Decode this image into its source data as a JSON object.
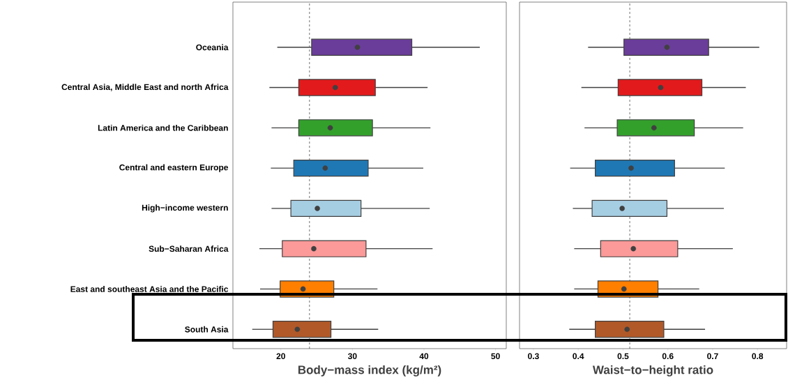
{
  "chart_data": [
    {
      "type": "box",
      "orientation": "horizontal",
      "xlabel": "Body−mass index (kg/m²)",
      "categories": [
        "Oceania",
        "Central Asia, Middle East and north Africa",
        "Latin America and the Caribbean",
        "Central and eastern Europe",
        "High−income western",
        "Sub−Saharan Africa",
        "East and southeast Asia and the Pacific",
        "South Asia"
      ],
      "colors": [
        "#6a3d9a",
        "#e31a1c",
        "#33a02c",
        "#1f78b4",
        "#a6cee3",
        "#fb9a99",
        "#ff7f00",
        "#b15928"
      ],
      "boxes": [
        {
          "low": 19.5,
          "q1": 24.3,
          "median": 30.7,
          "q3": 38.3,
          "high": 47.8
        },
        {
          "low": 18.4,
          "q1": 22.5,
          "median": 27.6,
          "q3": 33.2,
          "high": 40.5
        },
        {
          "low": 18.7,
          "q1": 22.5,
          "median": 26.9,
          "q3": 32.8,
          "high": 40.9
        },
        {
          "low": 18.6,
          "q1": 21.8,
          "median": 26.2,
          "q3": 32.2,
          "high": 39.9
        },
        {
          "low": 18.7,
          "q1": 21.4,
          "median": 25.1,
          "q3": 31.2,
          "high": 40.8
        },
        {
          "low": 17.0,
          "q1": 20.2,
          "median": 24.6,
          "q3": 31.9,
          "high": 41.2
        },
        {
          "low": 17.1,
          "q1": 19.9,
          "median": 23.1,
          "q3": 27.4,
          "high": 33.5
        },
        {
          "low": 16.0,
          "q1": 18.9,
          "median": 22.3,
          "q3": 27.0,
          "high": 33.6
        }
      ],
      "xlim": [
        13.3,
        51.5
      ],
      "xticks": [
        20,
        30,
        40,
        50
      ],
      "ref_lines": [
        {
          "axis": "x",
          "value": 24,
          "line_style": "dashed"
        }
      ]
    },
    {
      "type": "box",
      "orientation": "horizontal",
      "xlabel": "Waist−to−height ratio",
      "tick_labels": "x",
      "categories": [
        null,
        null,
        null,
        null,
        null,
        null,
        null,
        null
      ],
      "colors": [
        "#6a3d9a",
        "#e31a1c",
        "#33a02c",
        "#1f78b4",
        "#a6cee3",
        "#fb9a99",
        "#ff7f00",
        "#b15928"
      ],
      "boxes": [
        {
          "low": 0.422,
          "q1": 0.502,
          "median": 0.598,
          "q3": 0.691,
          "high": 0.804
        },
        {
          "low": 0.407,
          "q1": 0.489,
          "median": 0.584,
          "q3": 0.676,
          "high": 0.774
        },
        {
          "low": 0.414,
          "q1": 0.487,
          "median": 0.569,
          "q3": 0.659,
          "high": 0.768
        },
        {
          "low": 0.382,
          "q1": 0.438,
          "median": 0.518,
          "q3": 0.615,
          "high": 0.727
        },
        {
          "low": 0.388,
          "q1": 0.431,
          "median": 0.498,
          "q3": 0.598,
          "high": 0.725
        },
        {
          "low": 0.391,
          "q1": 0.45,
          "median": 0.523,
          "q3": 0.622,
          "high": 0.745
        },
        {
          "low": 0.391,
          "q1": 0.444,
          "median": 0.502,
          "q3": 0.578,
          "high": 0.67
        },
        {
          "low": 0.38,
          "q1": 0.438,
          "median": 0.509,
          "q3": 0.591,
          "high": 0.683
        }
      ],
      "xlim": [
        0.269,
        0.865
      ],
      "xticks": [
        0.3,
        0.4,
        0.5,
        0.6,
        0.7,
        0.8
      ],
      "ref_lines": [
        {
          "axis": "x",
          "value": 0.515,
          "line_style": "dashed"
        }
      ]
    }
  ]
}
